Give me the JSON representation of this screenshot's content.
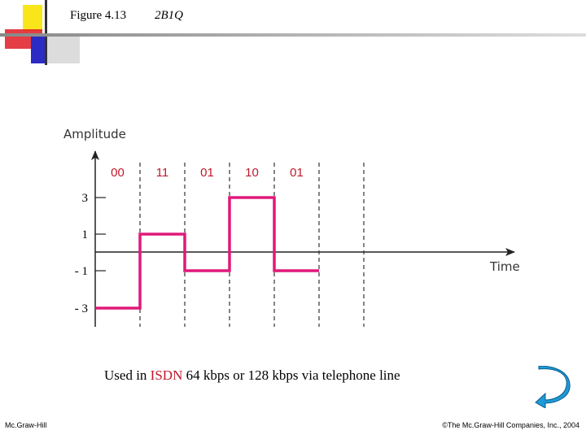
{
  "slide": {
    "figure_number": "Figure 4.13",
    "figure_name": "2B1Q",
    "caption": {
      "prefix": "Used in ",
      "highlight": "ISDN",
      "suffix": " 64 kbps or 128 kbps via telephone line",
      "highlight_color": "#c0182a"
    },
    "footer_left": "Mc.Graw-Hill",
    "footer_right": "©The Mc.Graw-Hill Companies, Inc., 2004"
  },
  "diagram": {
    "y_axis_label": "Amplitude",
    "x_axis_label": "Time",
    "levels": [
      "3",
      "1",
      "- 1",
      "- 3"
    ],
    "bit_pairs": [
      "00",
      "11",
      "01",
      "10",
      "01"
    ],
    "signal_levels": [
      -3,
      1,
      -1,
      3,
      -1
    ],
    "signal_color": "#e0197a",
    "bits_color": "#c0182a"
  },
  "colors": {
    "deco_yellow": "#f8e61a",
    "deco_red": "#e01b24",
    "deco_blue": "#2c2bc4",
    "return_icon": "#1e9ad6"
  }
}
